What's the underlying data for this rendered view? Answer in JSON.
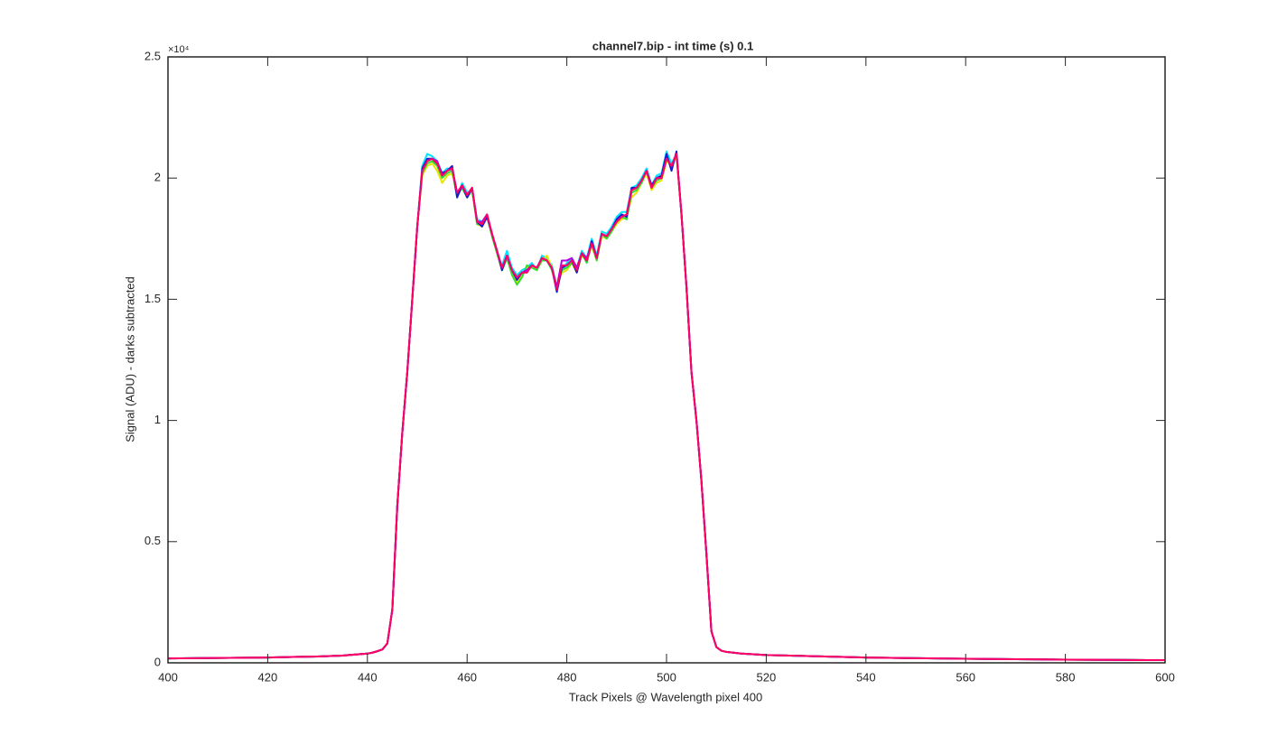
{
  "chart_data": {
    "type": "line",
    "title": "channel7.bip - int time (s) 0.1",
    "x_label": "Track Pixels @ Wavelength pixel 400",
    "y_label": "Signal (ADU) - darks subtracted",
    "y_multiplier": "×10⁴",
    "x": [
      400,
      405,
      410,
      415,
      420,
      425,
      430,
      435,
      440,
      441,
      442,
      443,
      444,
      445,
      446,
      447,
      448,
      449,
      450,
      451,
      452,
      453,
      454,
      455,
      456,
      457,
      458,
      459,
      460,
      461,
      462,
      463,
      464,
      465,
      466,
      467,
      468,
      469,
      470,
      471,
      472,
      473,
      474,
      475,
      476,
      477,
      478,
      479,
      480,
      481,
      482,
      483,
      484,
      485,
      486,
      487,
      488,
      489,
      490,
      491,
      492,
      493,
      494,
      495,
      496,
      497,
      498,
      499,
      500,
      501,
      502,
      503,
      504,
      505,
      506,
      507,
      508,
      509,
      510,
      511,
      512,
      515,
      520,
      530,
      540,
      550,
      560,
      570,
      580,
      590,
      600
    ],
    "series": [
      {
        "color": "#00e5ff",
        "values": [
          0.018,
          0.019,
          0.02,
          0.021,
          0.022,
          0.024,
          0.026,
          0.03,
          0.038,
          0.042,
          0.048,
          0.055,
          0.08,
          0.22,
          0.65,
          0.95,
          1.2,
          1.5,
          1.8,
          2.05,
          2.1,
          2.09,
          2.07,
          2.02,
          2.04,
          2.03,
          1.92,
          1.98,
          1.94,
          1.95,
          1.83,
          1.82,
          1.84,
          1.76,
          1.69,
          1.64,
          1.7,
          1.63,
          1.6,
          1.62,
          1.63,
          1.65,
          1.62,
          1.68,
          1.67,
          1.64,
          1.55,
          1.62,
          1.65,
          1.67,
          1.63,
          1.7,
          1.67,
          1.75,
          1.68,
          1.78,
          1.77,
          1.8,
          1.84,
          1.86,
          1.86,
          1.96,
          1.97,
          2.0,
          2.04,
          1.97,
          2.01,
          2.02,
          2.11,
          2.06,
          2.1,
          1.85,
          1.55,
          1.2,
          1.0,
          0.75,
          0.45,
          0.13,
          0.065,
          0.05,
          0.045,
          0.038,
          0.032,
          0.027,
          0.022,
          0.019,
          0.017,
          0.015,
          0.013,
          0.012,
          0.011
        ]
      },
      {
        "color": "#e6e600",
        "values": [
          0.018,
          0.019,
          0.02,
          0.021,
          0.022,
          0.024,
          0.026,
          0.03,
          0.038,
          0.042,
          0.048,
          0.055,
          0.08,
          0.22,
          0.65,
          0.95,
          1.2,
          1.5,
          1.8,
          2.01,
          2.05,
          2.06,
          2.03,
          1.98,
          2.01,
          2.02,
          1.93,
          1.96,
          1.92,
          1.95,
          1.81,
          1.8,
          1.84,
          1.76,
          1.69,
          1.62,
          1.67,
          1.61,
          1.57,
          1.6,
          1.63,
          1.63,
          1.63,
          1.66,
          1.68,
          1.63,
          1.55,
          1.61,
          1.62,
          1.65,
          1.61,
          1.68,
          1.66,
          1.72,
          1.66,
          1.76,
          1.75,
          1.78,
          1.81,
          1.83,
          1.84,
          1.92,
          1.94,
          1.98,
          2.02,
          1.95,
          1.98,
          1.99,
          2.07,
          2.05,
          2.09,
          1.85,
          1.55,
          1.2,
          1.0,
          0.75,
          0.45,
          0.13,
          0.065,
          0.05,
          0.045,
          0.038,
          0.032,
          0.027,
          0.022,
          0.019,
          0.017,
          0.015,
          0.013,
          0.012,
          0.011
        ]
      },
      {
        "color": "#33dd33",
        "values": [
          0.018,
          0.019,
          0.02,
          0.021,
          0.022,
          0.024,
          0.026,
          0.03,
          0.038,
          0.042,
          0.048,
          0.055,
          0.08,
          0.22,
          0.65,
          0.95,
          1.2,
          1.5,
          1.8,
          2.02,
          2.06,
          2.07,
          2.05,
          2.0,
          2.02,
          2.03,
          1.93,
          1.96,
          1.92,
          1.95,
          1.81,
          1.81,
          1.85,
          1.76,
          1.69,
          1.62,
          1.67,
          1.6,
          1.56,
          1.59,
          1.64,
          1.63,
          1.62,
          1.66,
          1.66,
          1.62,
          1.55,
          1.62,
          1.63,
          1.65,
          1.62,
          1.69,
          1.65,
          1.73,
          1.66,
          1.77,
          1.75,
          1.78,
          1.82,
          1.84,
          1.83,
          1.94,
          1.95,
          1.98,
          2.03,
          1.96,
          1.99,
          2.0,
          2.08,
          2.05,
          2.1,
          1.85,
          1.55,
          1.2,
          1.0,
          0.75,
          0.45,
          0.13,
          0.065,
          0.05,
          0.045,
          0.038,
          0.032,
          0.027,
          0.022,
          0.019,
          0.017,
          0.015,
          0.013,
          0.012,
          0.011
        ]
      },
      {
        "color": "#1a1acc",
        "values": [
          0.018,
          0.019,
          0.02,
          0.021,
          0.022,
          0.024,
          0.026,
          0.03,
          0.038,
          0.042,
          0.048,
          0.055,
          0.08,
          0.22,
          0.65,
          0.95,
          1.2,
          1.5,
          1.8,
          2.04,
          2.08,
          2.08,
          2.06,
          2.02,
          2.03,
          2.05,
          1.92,
          1.97,
          1.92,
          1.96,
          1.82,
          1.8,
          1.84,
          1.77,
          1.7,
          1.62,
          1.68,
          1.62,
          1.58,
          1.61,
          1.62,
          1.64,
          1.63,
          1.67,
          1.66,
          1.63,
          1.53,
          1.63,
          1.64,
          1.66,
          1.61,
          1.69,
          1.66,
          1.74,
          1.67,
          1.77,
          1.76,
          1.79,
          1.83,
          1.85,
          1.84,
          1.96,
          1.96,
          1.99,
          2.03,
          1.97,
          2.0,
          2.01,
          2.1,
          2.03,
          2.11,
          1.85,
          1.55,
          1.2,
          1.0,
          0.75,
          0.45,
          0.13,
          0.065,
          0.05,
          0.045,
          0.038,
          0.032,
          0.027,
          0.022,
          0.019,
          0.017,
          0.015,
          0.013,
          0.012,
          0.011
        ]
      },
      {
        "color": "#b300e6",
        "values": [
          0.018,
          0.019,
          0.02,
          0.021,
          0.022,
          0.024,
          0.026,
          0.03,
          0.038,
          0.042,
          0.048,
          0.055,
          0.08,
          0.22,
          0.65,
          0.95,
          1.2,
          1.5,
          1.8,
          2.03,
          2.07,
          2.08,
          2.07,
          2.01,
          2.03,
          2.04,
          1.94,
          1.97,
          1.93,
          1.96,
          1.82,
          1.82,
          1.85,
          1.77,
          1.7,
          1.63,
          1.68,
          1.62,
          1.59,
          1.61,
          1.62,
          1.64,
          1.63,
          1.67,
          1.66,
          1.63,
          1.55,
          1.66,
          1.66,
          1.67,
          1.63,
          1.69,
          1.67,
          1.73,
          1.67,
          1.77,
          1.76,
          1.79,
          1.82,
          1.84,
          1.85,
          1.95,
          1.96,
          1.99,
          2.03,
          1.96,
          2.0,
          2.0,
          2.08,
          2.05,
          2.1,
          1.85,
          1.55,
          1.2,
          1.0,
          0.75,
          0.45,
          0.13,
          0.065,
          0.05,
          0.045,
          0.038,
          0.032,
          0.027,
          0.022,
          0.019,
          0.017,
          0.015,
          0.013,
          0.012,
          0.011
        ]
      },
      {
        "color": "#ff0066",
        "values": [
          0.018,
          0.019,
          0.02,
          0.021,
          0.022,
          0.024,
          0.026,
          0.03,
          0.038,
          0.042,
          0.048,
          0.055,
          0.08,
          0.22,
          0.65,
          0.95,
          1.2,
          1.5,
          1.8,
          2.03,
          2.07,
          2.08,
          2.06,
          2.01,
          2.03,
          2.04,
          1.94,
          1.97,
          1.93,
          1.96,
          1.82,
          1.81,
          1.85,
          1.77,
          1.7,
          1.63,
          1.68,
          1.62,
          1.59,
          1.61,
          1.61,
          1.64,
          1.63,
          1.67,
          1.66,
          1.63,
          1.54,
          1.64,
          1.64,
          1.66,
          1.62,
          1.69,
          1.66,
          1.73,
          1.67,
          1.77,
          1.76,
          1.79,
          1.82,
          1.84,
          1.85,
          1.95,
          1.96,
          1.99,
          2.03,
          1.96,
          2.0,
          2.0,
          2.08,
          2.05,
          2.1,
          1.85,
          1.55,
          1.2,
          1.0,
          0.75,
          0.45,
          0.13,
          0.065,
          0.05,
          0.045,
          0.038,
          0.032,
          0.027,
          0.022,
          0.019,
          0.017,
          0.015,
          0.013,
          0.012,
          0.011
        ]
      }
    ],
    "xlim": [
      400,
      600
    ],
    "xticks": [
      400,
      420,
      440,
      460,
      480,
      500,
      520,
      540,
      560,
      580,
      600
    ],
    "ylim": [
      0,
      2.5
    ],
    "yticks": [
      0,
      0.5,
      1,
      1.5,
      2,
      2.5
    ],
    "grid": false
  }
}
